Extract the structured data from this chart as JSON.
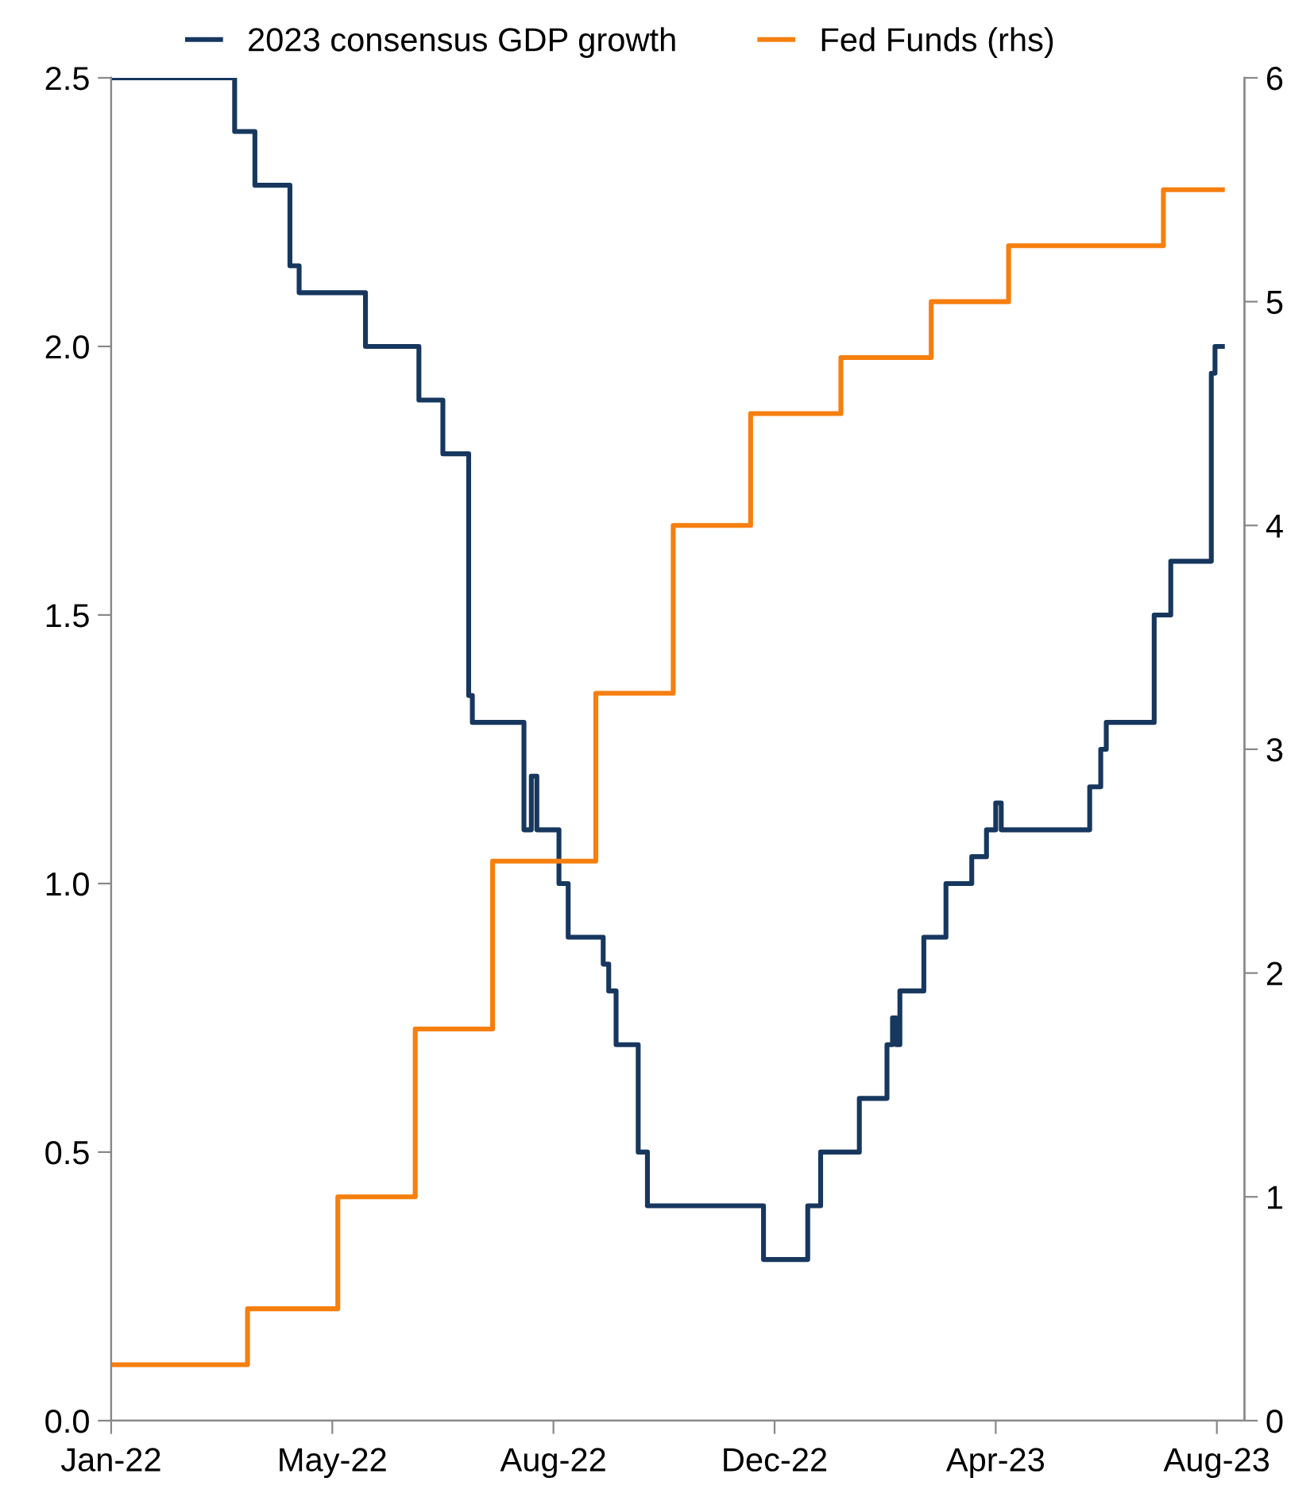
{
  "chart_data": {
    "type": "step",
    "x": [
      "2022-01-01",
      "2022-03-09",
      "2022-03-20",
      "2022-04-08",
      "2022-04-13",
      "2022-05-19",
      "2022-06-17",
      "2022-06-30",
      "2022-07-14",
      "2022-07-16",
      "2022-08-13",
      "2022-08-17",
      "2022-08-20",
      "2022-09-01",
      "2022-09-06",
      "2022-09-25",
      "2022-09-28",
      "2022-10-02",
      "2022-10-14",
      "2022-10-19",
      "2022-12-21",
      "2023-01-14",
      "2023-01-21",
      "2023-02-11",
      "2023-02-26",
      "2023-03-01",
      "2023-03-03",
      "2023-03-05",
      "2023-03-18",
      "2023-03-30",
      "2023-04-13",
      "2023-04-21",
      "2023-04-26",
      "2023-04-29",
      "2023-06-16",
      "2023-06-22",
      "2023-06-25",
      "2023-07-21",
      "2023-07-30",
      "2023-08-21",
      "2023-08-23",
      "2023-08-27"
    ],
    "series": [
      {
        "name": "2023 consensus GDP growth",
        "color": "#17375e",
        "values": [
          2.5,
          2.4,
          2.3,
          2.15,
          2.1,
          2.0,
          1.9,
          1.8,
          1.35,
          1.3,
          1.1,
          1.2,
          1.1,
          1.0,
          0.9,
          0.85,
          0.8,
          0.7,
          0.5,
          0.4,
          0.3,
          0.4,
          0.5,
          0.6,
          0.7,
          0.75,
          0.7,
          0.8,
          0.9,
          1.0,
          1.05,
          1.1,
          1.15,
          1.1,
          1.18,
          1.25,
          1.3,
          1.5,
          1.6,
          1.95,
          2.0,
          2.0
        ]
      },
      {
        "name": "Fed Funds (rhs)",
        "color": "#f57f0f",
        "axis": "y2",
        "x": [
          "2022-01-01",
          "2022-03-16",
          "2022-05-04",
          "2022-06-15",
          "2022-07-27",
          "2022-09-21",
          "2022-11-02",
          "2022-12-14",
          "2023-02-01",
          "2023-03-22",
          "2023-05-03",
          "2023-07-26",
          "2023-08-27"
        ],
        "values": [
          0.25,
          0.5,
          1.0,
          1.75,
          2.5,
          3.25,
          4.0,
          4.5,
          4.75,
          5.0,
          5.25,
          5.5,
          5.5
        ]
      }
    ],
    "xlim": [
      "2022-01-01",
      "2023-09-08"
    ],
    "xticks": [
      {
        "value": "2022-01-01",
        "label": "Jan-22"
      },
      {
        "value": "2022-05-01",
        "label": "May-22"
      },
      {
        "value": "2022-08-29",
        "label": "Aug-22"
      },
      {
        "value": "2022-12-27",
        "label": "Dec-22"
      },
      {
        "value": "2023-04-26",
        "label": "Apr-23"
      },
      {
        "value": "2023-08-24",
        "label": "Aug-23"
      }
    ],
    "ylim": [
      0,
      2.5
    ],
    "yticks": [
      {
        "value": 0,
        "label": "0.0"
      },
      {
        "value": 0.5,
        "label": "0.5"
      },
      {
        "value": 1,
        "label": "1.0"
      },
      {
        "value": 1.5,
        "label": "1.5"
      },
      {
        "value": 2,
        "label": "2.0"
      },
      {
        "value": 2.5,
        "label": "2.5"
      }
    ],
    "y2lim": [
      0,
      6
    ],
    "y2ticks": [
      0,
      1,
      2,
      3,
      4,
      5,
      6
    ],
    "grid": false,
    "legend": "top"
  }
}
